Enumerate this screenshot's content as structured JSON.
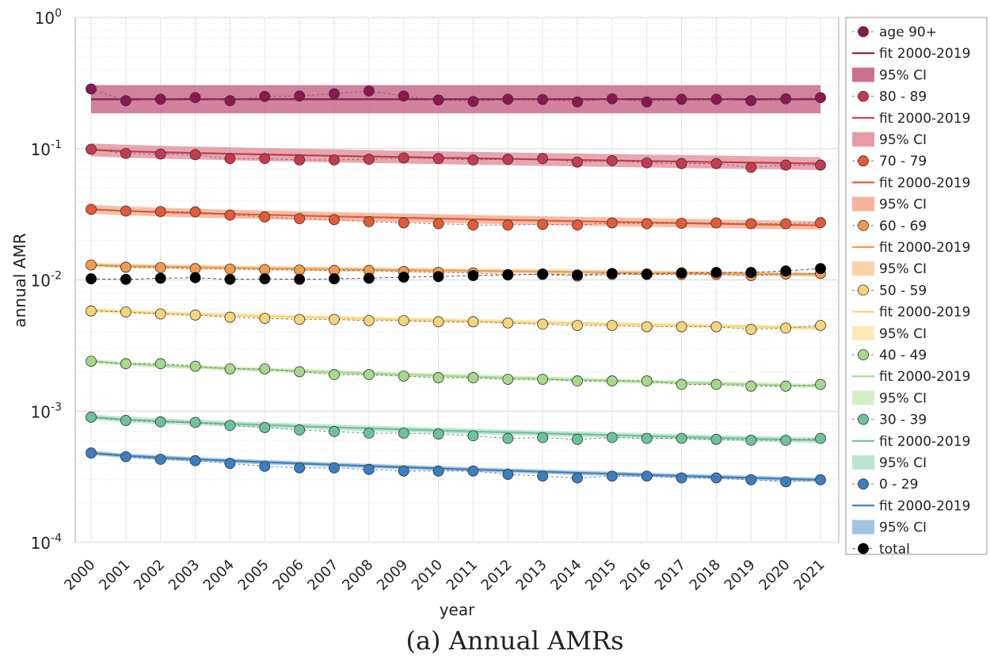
{
  "chart_data": {
    "type": "line",
    "caption": "(a) Annual AMRs",
    "xlabel": "year",
    "ylabel": "annual AMR",
    "yscale": "log",
    "ylim": [
      0.0001,
      1
    ],
    "y_ticks": [
      {
        "value": 1,
        "mantissa": "10",
        "exp": "0"
      },
      {
        "value": 0.1,
        "mantissa": "10",
        "exp": "-1"
      },
      {
        "value": 0.01,
        "mantissa": "10",
        "exp": "-2"
      },
      {
        "value": 0.001,
        "mantissa": "10",
        "exp": "-3"
      },
      {
        "value": 0.0001,
        "mantissa": "10",
        "exp": "-4"
      }
    ],
    "grid": true,
    "legend_position": "outside right",
    "x": [
      "2000",
      "2001",
      "2002",
      "2003",
      "2004",
      "2005",
      "2006",
      "2007",
      "2008",
      "2009",
      "2010",
      "2011",
      "2012",
      "2013",
      "2014",
      "2015",
      "2016",
      "2017",
      "2018",
      "2019",
      "2020",
      "2021"
    ],
    "series": [
      {
        "name": "age 90+",
        "fit_label": "fit 2000-2019",
        "ci_label": "95% CI",
        "color": "#8e1552",
        "band_color": "#c0587e",
        "values": [
          0.285,
          0.232,
          0.238,
          0.245,
          0.232,
          0.25,
          0.252,
          0.262,
          0.275,
          0.252,
          0.235,
          0.229,
          0.238,
          0.237,
          0.227,
          0.24,
          0.227,
          0.238,
          0.238,
          0.232,
          0.24,
          0.245
        ],
        "fit_start": 0.238,
        "fit_end": 0.238,
        "ci_width": 1.28
      },
      {
        "name": "80 - 89",
        "fit_label": "fit 2000-2019",
        "ci_label": "95% CI",
        "color": "#c53a4f",
        "band_color": "#e08a95",
        "values": [
          0.099,
          0.092,
          0.091,
          0.09,
          0.084,
          0.084,
          0.082,
          0.082,
          0.083,
          0.085,
          0.084,
          0.082,
          0.083,
          0.084,
          0.079,
          0.081,
          0.078,
          0.077,
          0.077,
          0.072,
          0.075,
          0.075
        ],
        "fit_start": 0.098,
        "fit_end": 0.077,
        "ci_width": 1.12
      },
      {
        "name": "70 - 79",
        "fit_label": "fit 2000-2019",
        "ci_label": "95% CI",
        "color": "#e45a35",
        "band_color": "#f4a68a",
        "values": [
          0.0345,
          0.0335,
          0.0332,
          0.033,
          0.0312,
          0.0302,
          0.0293,
          0.0288,
          0.0278,
          0.0272,
          0.0268,
          0.0262,
          0.0262,
          0.0265,
          0.0262,
          0.0272,
          0.0268,
          0.027,
          0.0272,
          0.0268,
          0.0268,
          0.0273
        ],
        "fit_start": 0.0345,
        "fit_end": 0.026,
        "ci_width": 1.08
      },
      {
        "name": "60 - 69",
        "fit_label": "fit 2000-2019",
        "ci_label": "95% CI",
        "color": "#f39a4c",
        "band_color": "#f9c99a",
        "values": [
          0.013,
          0.0125,
          0.0124,
          0.0122,
          0.0121,
          0.012,
          0.0119,
          0.0118,
          0.0118,
          0.0116,
          0.0114,
          0.0113,
          0.011,
          0.011,
          0.0107,
          0.011,
          0.011,
          0.011,
          0.011,
          0.0108,
          0.0111,
          0.0112
        ],
        "fit_start": 0.013,
        "fit_end": 0.011,
        "ci_width": 1.04
      },
      {
        "name": "50 - 59",
        "fit_label": "fit 2000-2019",
        "ci_label": "95% CI",
        "color": "#f7d37a",
        "band_color": "#fbe5a8",
        "values": [
          0.0058,
          0.0057,
          0.0055,
          0.0054,
          0.0052,
          0.0051,
          0.005,
          0.005,
          0.0049,
          0.0049,
          0.0048,
          0.0048,
          0.0047,
          0.0046,
          0.0045,
          0.0045,
          0.0044,
          0.0044,
          0.0044,
          0.0042,
          0.0043,
          0.0045
        ],
        "fit_start": 0.0059,
        "fit_end": 0.0043,
        "ci_width": 1.04
      },
      {
        "name": "40 - 49",
        "fit_label": "fit 2000-2019",
        "ci_label": "95% CI",
        "color": "#a5d98b",
        "band_color": "#cdebbd",
        "values": [
          0.0024,
          0.0023,
          0.0023,
          0.0022,
          0.0021,
          0.0021,
          0.002,
          0.0019,
          0.0019,
          0.00185,
          0.0018,
          0.0018,
          0.00175,
          0.00175,
          0.0017,
          0.0017,
          0.0017,
          0.0016,
          0.0016,
          0.00155,
          0.00155,
          0.0016
        ],
        "fit_start": 0.0024,
        "fit_end": 0.00155,
        "ci_width": 1.04
      },
      {
        "name": "30 - 39",
        "fit_label": "fit 2000-2019",
        "ci_label": "95% CI",
        "color": "#6cc39a",
        "band_color": "#aedfc5",
        "values": [
          0.0009,
          0.00085,
          0.00083,
          0.00082,
          0.00078,
          0.00075,
          0.00072,
          0.0007,
          0.00068,
          0.00068,
          0.00067,
          0.00065,
          0.00062,
          0.00063,
          0.00061,
          0.00063,
          0.00062,
          0.00062,
          0.00061,
          0.0006,
          0.0006,
          0.00062
        ],
        "fit_start": 0.0009,
        "fit_end": 0.0006,
        "ci_width": 1.05
      },
      {
        "name": "0 - 29",
        "fit_label": "fit 2000-2019",
        "ci_label": "95% CI",
        "color": "#3a7fbf",
        "band_color": "#8fb8dc",
        "values": [
          0.00048,
          0.00045,
          0.00043,
          0.00042,
          0.0004,
          0.00038,
          0.00037,
          0.00037,
          0.00036,
          0.00035,
          0.00035,
          0.00035,
          0.00033,
          0.00032,
          0.00031,
          0.00032,
          0.00032,
          0.00031,
          0.00031,
          0.0003,
          0.00029,
          0.0003
        ],
        "fit_start": 0.00048,
        "fit_end": 0.0003,
        "ci_width": 1.04
      }
    ],
    "total": {
      "name": "total",
      "color": "#000000",
      "values": [
        0.0102,
        0.0101,
        0.0103,
        0.0104,
        0.0101,
        0.0102,
        0.0101,
        0.0102,
        0.0103,
        0.0105,
        0.0106,
        0.0108,
        0.0109,
        0.0111,
        0.0109,
        0.0112,
        0.0111,
        0.0113,
        0.0114,
        0.0114,
        0.0117,
        0.0122
      ]
    }
  }
}
